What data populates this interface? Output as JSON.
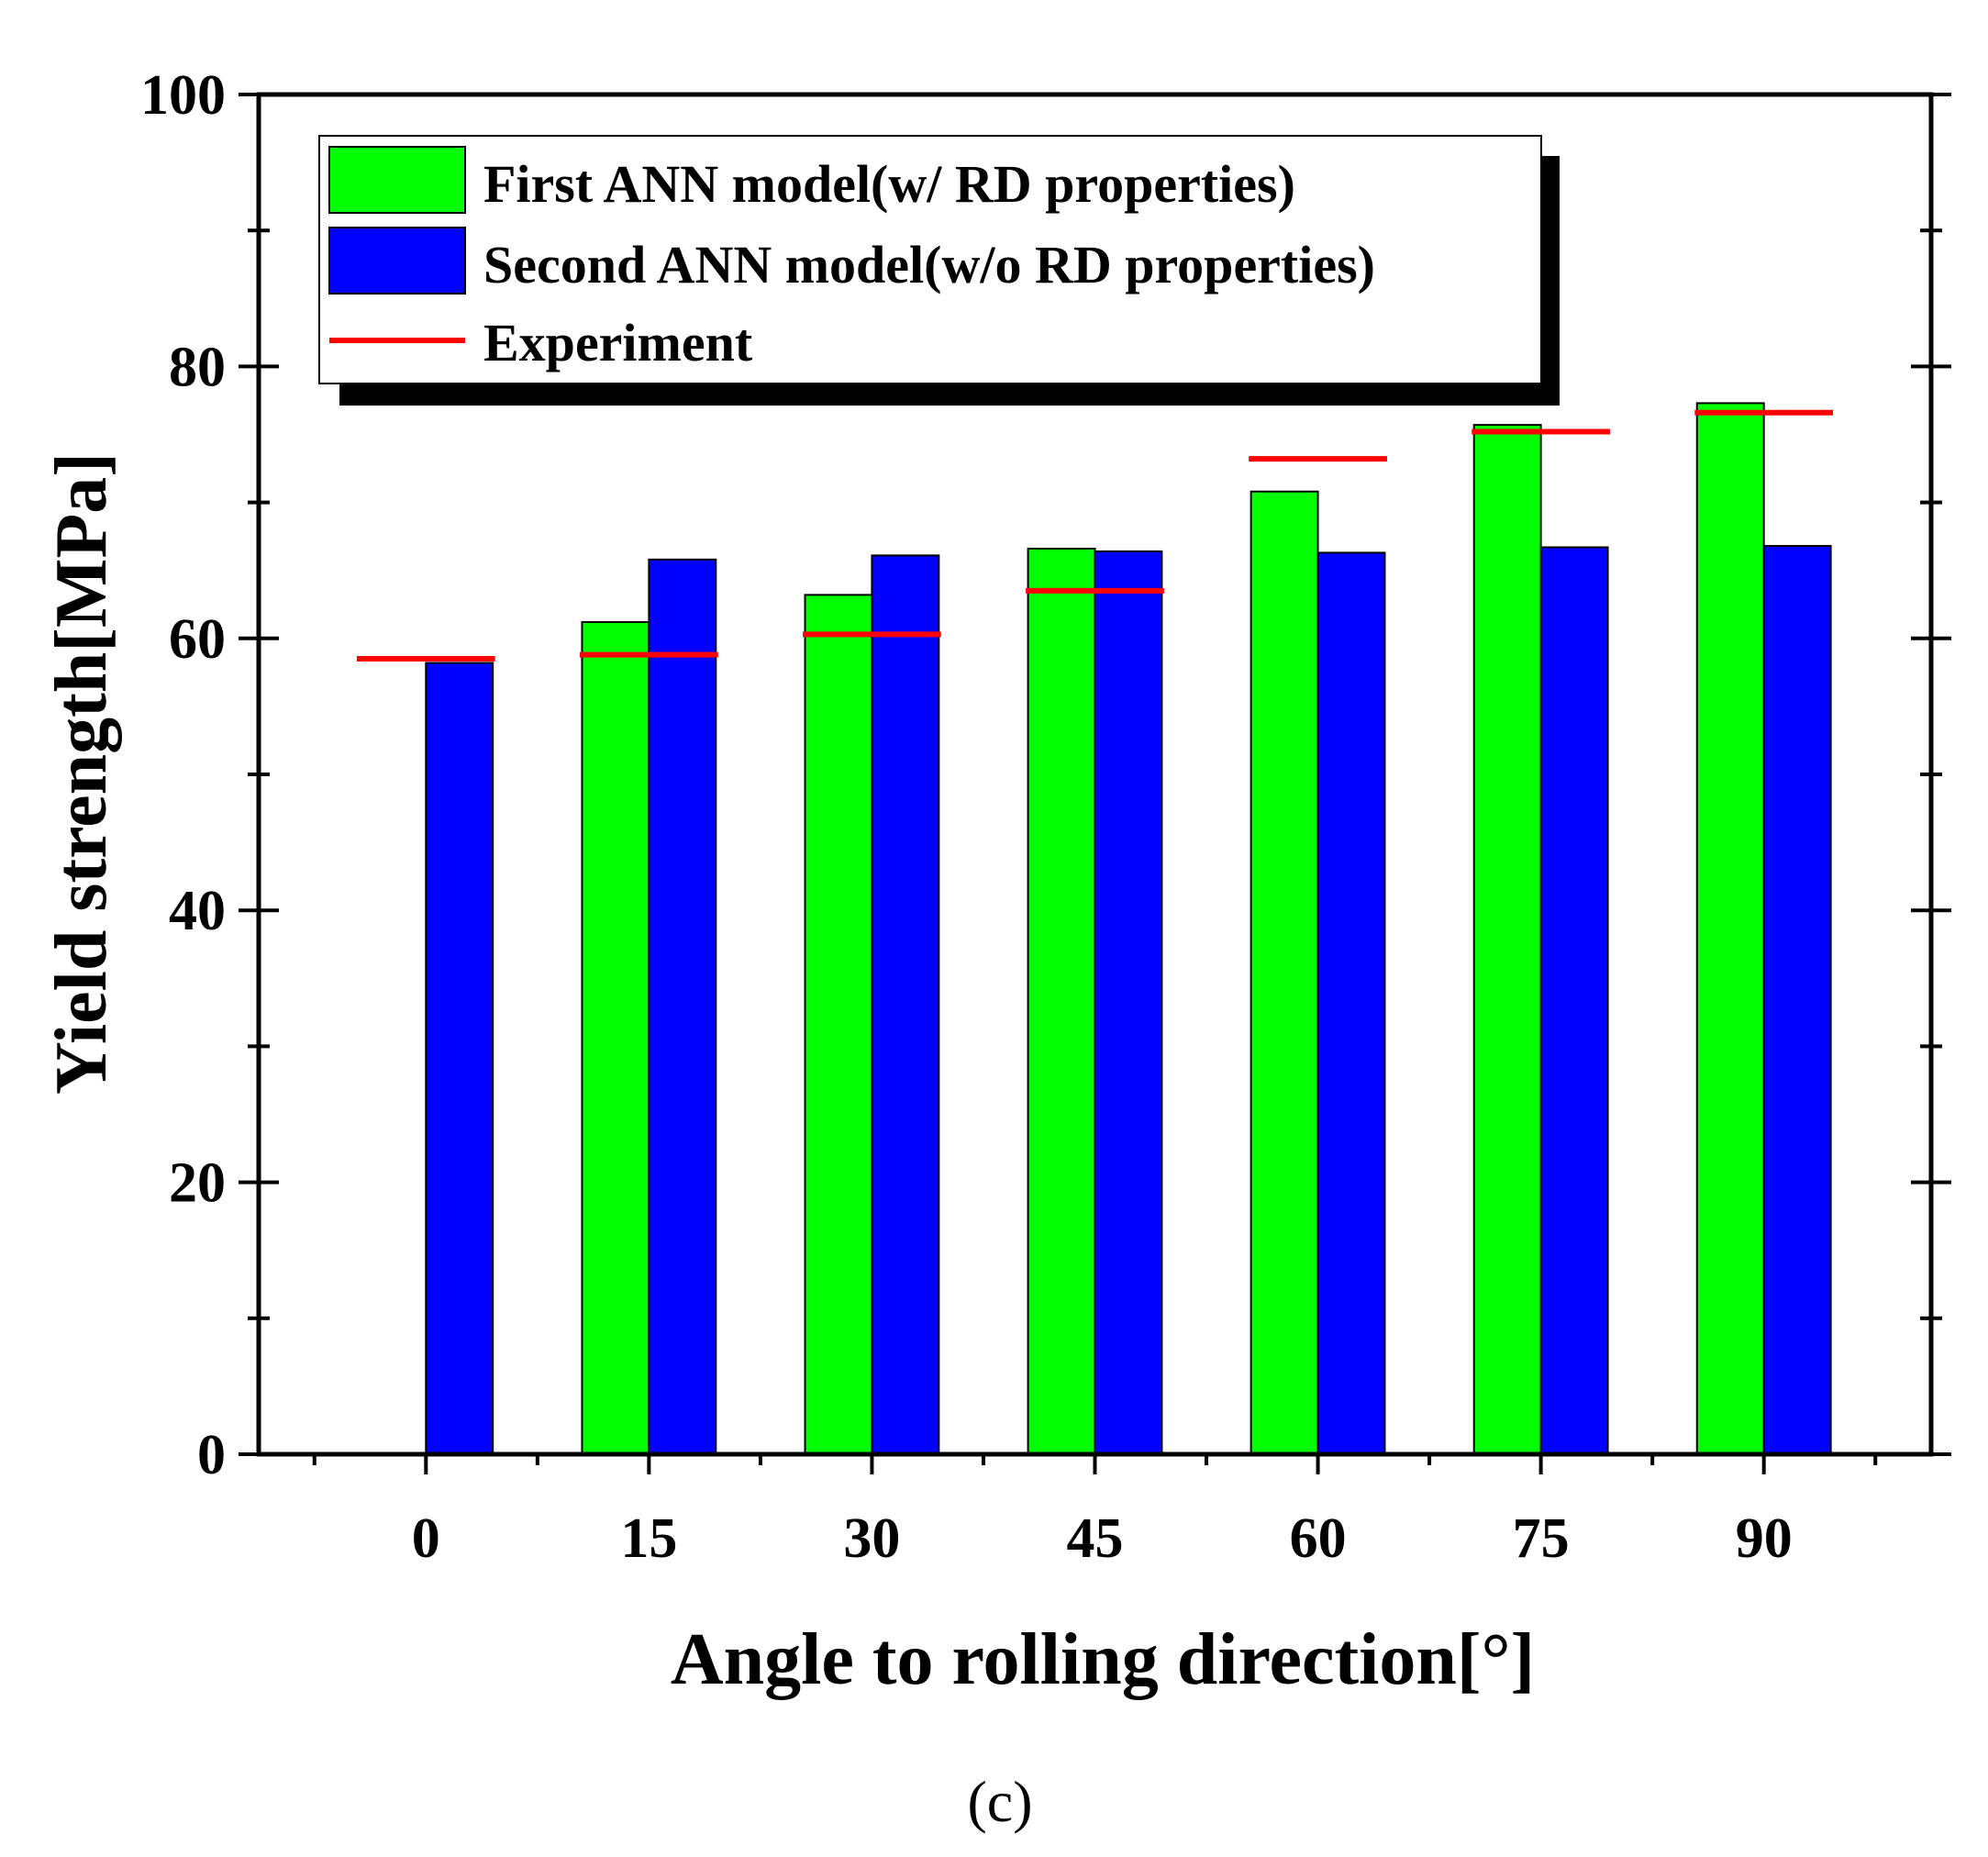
{
  "chart_data": {
    "type": "bar",
    "title": "",
    "xlabel": "Angle to rolling direction[°]",
    "ylabel": "Yield strength[MPa]",
    "categories": [
      "0",
      "15",
      "30",
      "45",
      "60",
      "75",
      "90"
    ],
    "ylim": [
      0,
      100
    ],
    "yticks": [
      "0",
      "20",
      "40",
      "60",
      "80",
      "100"
    ],
    "series": [
      {
        "name": "First ANN model(w/ RD properties)",
        "kind": "bar",
        "color": "#00ff00",
        "values": [
          0,
          61.2,
          63.2,
          66.6,
          70.8,
          75.7,
          77.3
        ]
      },
      {
        "name": "Second ANN model(w/o RD properties)",
        "kind": "bar",
        "color": "#0000ff",
        "values": [
          58.2,
          65.8,
          66.1,
          66.4,
          66.3,
          66.7,
          66.8
        ]
      },
      {
        "name": "Experiment",
        "kind": "line-marker",
        "color": "#ff0000",
        "values": [
          58.5,
          58.8,
          60.3,
          63.5,
          73.2,
          75.2,
          76.6
        ]
      }
    ],
    "legend_position": "top-left",
    "caption": "(c)"
  }
}
